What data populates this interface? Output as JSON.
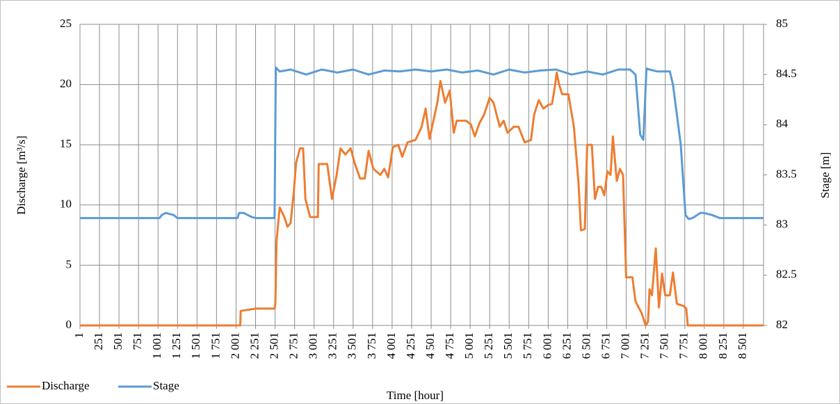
{
  "chart_data": {
    "type": "line",
    "x_label": "Time [hour]",
    "y_label": "Discharge [m³/s]",
    "y2_label": "Stage [m]",
    "xlim": [
      1,
      8760
    ],
    "xticks": [
      1,
      251,
      501,
      751,
      {
        "value": 1001,
        "label": "1 001"
      },
      {
        "value": 1251,
        "label": "1 251"
      },
      {
        "value": 1501,
        "label": "1 501"
      },
      {
        "value": 1751,
        "label": "1 751"
      },
      {
        "value": 2001,
        "label": "2 001"
      },
      {
        "value": 2251,
        "label": "2 251"
      },
      {
        "value": 2501,
        "label": "2 501"
      },
      {
        "value": 2751,
        "label": "2 751"
      },
      {
        "value": 3001,
        "label": "3 001"
      },
      {
        "value": 3251,
        "label": "3 251"
      },
      {
        "value": 3501,
        "label": "3 501"
      },
      {
        "value": 3751,
        "label": "3 751"
      },
      {
        "value": 4001,
        "label": "4 001"
      },
      {
        "value": 4251,
        "label": "4 251"
      },
      {
        "value": 4501,
        "label": "4 501"
      },
      {
        "value": 4751,
        "label": "4 751"
      },
      {
        "value": 5001,
        "label": "5 001"
      },
      {
        "value": 5251,
        "label": "5 251"
      },
      {
        "value": 5501,
        "label": "5 501"
      },
      {
        "value": 5751,
        "label": "5 751"
      },
      {
        "value": 6001,
        "label": "6 001"
      },
      {
        "value": 6251,
        "label": "6 251"
      },
      {
        "value": 6501,
        "label": "6 501"
      },
      {
        "value": 6751,
        "label": "6 751"
      },
      {
        "value": 7001,
        "label": "7 001"
      },
      {
        "value": 7251,
        "label": "7 251"
      },
      {
        "value": 7501,
        "label": "7 501"
      },
      {
        "value": 7751,
        "label": "7 751"
      },
      {
        "value": 8001,
        "label": "8 001"
      },
      {
        "value": 8251,
        "label": "8 251"
      },
      {
        "value": 8501,
        "label": "8 501"
      }
    ],
    "ylim": [
      0,
      25
    ],
    "yticks": [
      0,
      5,
      10,
      15,
      20,
      25
    ],
    "y2lim": [
      82,
      85
    ],
    "y2ticks": [
      82,
      82.5,
      83,
      83.5,
      84,
      84.5,
      85
    ],
    "grid": true,
    "legend": "bottom-left",
    "series": [
      {
        "name": "Discharge",
        "color": "#ed7d31",
        "x": [
          1,
          2055,
          2060,
          2250,
          2495,
          2505,
          2520,
          2560,
          2620,
          2660,
          2700,
          2740,
          2770,
          2820,
          2860,
          2890,
          2950,
          3050,
          3060,
          3170,
          3230,
          3290,
          3340,
          3400,
          3470,
          3520,
          3590,
          3650,
          3700,
          3760,
          3850,
          3900,
          3950,
          4010,
          4080,
          4130,
          4200,
          4300,
          4380,
          4430,
          4480,
          4530,
          4580,
          4620,
          4680,
          4740,
          4790,
          4830,
          4950,
          5010,
          5060,
          5120,
          5180,
          5250,
          5300,
          5380,
          5430,
          5480,
          5560,
          5620,
          5700,
          5780,
          5820,
          5880,
          5940,
          6000,
          6050,
          6090,
          6110,
          6140,
          6180,
          6260,
          6330,
          6390,
          6420,
          6470,
          6500,
          6560,
          6600,
          6640,
          6680,
          6720,
          6760,
          6800,
          6830,
          6880,
          6920,
          6960,
          7000,
          7080,
          7120,
          7200,
          7250,
          7280,
          7300,
          7330,
          7380,
          7420,
          7460,
          7500,
          7560,
          7600,
          7650,
          7740,
          7770,
          7790,
          8760
        ],
        "values": [
          0,
          0,
          1.2,
          1.4,
          1.4,
          1.8,
          7,
          9.8,
          9,
          8.2,
          8.5,
          11,
          13.5,
          14.7,
          14.7,
          10.5,
          9,
          9,
          13.4,
          13.4,
          10.5,
          12.5,
          14.7,
          14.2,
          14.7,
          13.5,
          12.2,
          12.2,
          14.5,
          13,
          12.5,
          13,
          12.3,
          14.8,
          15,
          14,
          15.2,
          15.4,
          16.5,
          18,
          15.5,
          17,
          18.5,
          20.3,
          18.5,
          19.5,
          16,
          17,
          17,
          16.7,
          15.7,
          16.8,
          17.5,
          18.9,
          18.5,
          16.5,
          17,
          16,
          16.5,
          16.5,
          15.2,
          15.4,
          17.5,
          18.7,
          18,
          18.3,
          18.4,
          20,
          21,
          20,
          19.2,
          19.2,
          16.5,
          11.8,
          7.9,
          8,
          15,
          15,
          10.5,
          11.5,
          11.5,
          10.8,
          12.8,
          12.5,
          15.7,
          12,
          13,
          12.5,
          4,
          4,
          2,
          1,
          0,
          0.3,
          3,
          2.5,
          6.4,
          1.5,
          4.3,
          2.5,
          2.5,
          4.4,
          1.8,
          1.6,
          1.4,
          0,
          0
        ]
      },
      {
        "name": "Stage",
        "color": "#5b9bd5",
        "axis": "y2",
        "x": [
          1,
          1020,
          1050,
          1100,
          1200,
          1250,
          2020,
          2040,
          2100,
          2200,
          2250,
          2495,
          2510,
          2560,
          2700,
          2900,
          3100,
          3300,
          3500,
          3700,
          3900,
          4100,
          4300,
          4500,
          4700,
          4900,
          5100,
          5300,
          5500,
          5700,
          5900,
          6100,
          6300,
          6500,
          6700,
          6900,
          7000,
          7050,
          7120,
          7180,
          7220,
          7260,
          7300,
          7400,
          7500,
          7560,
          7600,
          7700,
          7760,
          7800,
          7850,
          7950,
          8000,
          8100,
          8200,
          8760
        ],
        "values": [
          83.07,
          83.07,
          83.1,
          83.12,
          83.1,
          83.07,
          83.07,
          83.12,
          83.12,
          83.08,
          83.07,
          83.07,
          84.57,
          84.53,
          84.55,
          84.5,
          84.55,
          84.52,
          84.55,
          84.5,
          84.54,
          84.53,
          84.55,
          84.53,
          84.55,
          84.52,
          84.54,
          84.5,
          84.55,
          84.52,
          84.54,
          84.55,
          84.5,
          84.53,
          84.5,
          84.55,
          84.55,
          84.55,
          84.5,
          83.9,
          83.85,
          84.56,
          84.55,
          84.53,
          84.53,
          84.53,
          84.4,
          83.8,
          83.1,
          83.06,
          83.07,
          83.12,
          83.12,
          83.1,
          83.07,
          83.07
        ]
      }
    ]
  }
}
